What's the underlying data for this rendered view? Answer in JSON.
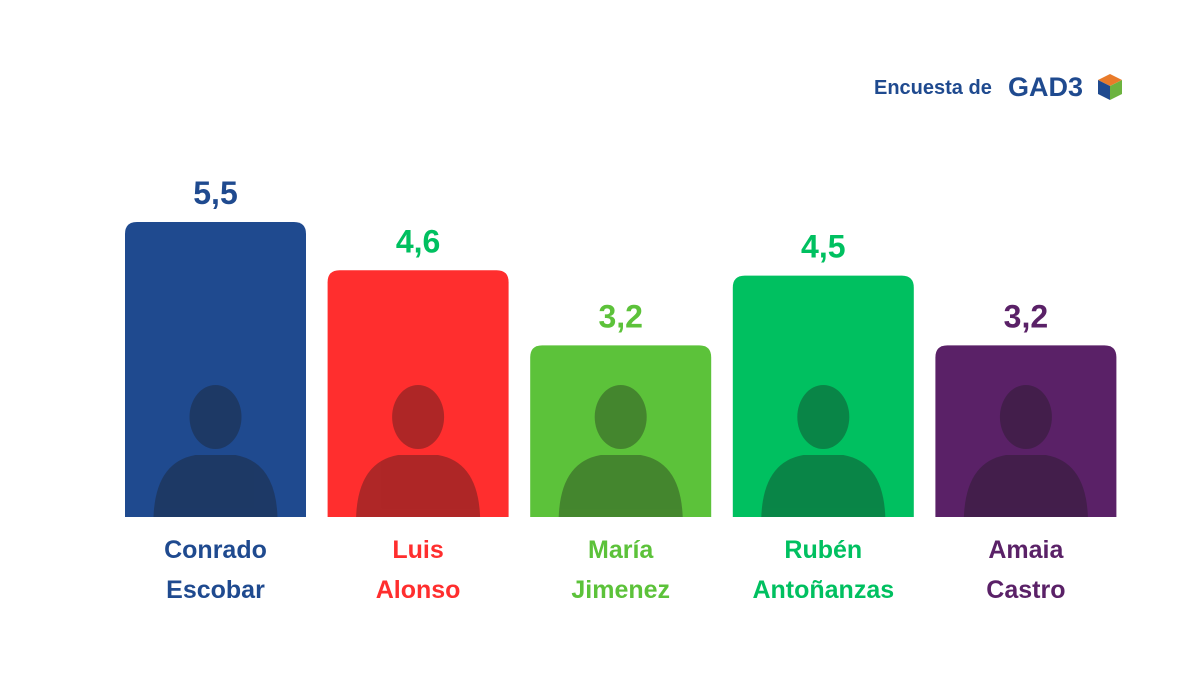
{
  "chart_data": {
    "type": "bar",
    "source": "Encuesta de",
    "source_brand": "GAD3",
    "categories": [
      "Conrado Escobar",
      "Luis Alonso",
      "María Jimenez",
      "Rubén Antoñanzas",
      "Amaia Castro"
    ],
    "values": [
      5.5,
      4.6,
      3.2,
      4.5,
      3.2
    ],
    "value_labels": [
      "5,5",
      "4,6",
      "3,2",
      "4,5",
      "3,2"
    ],
    "colors": [
      "#1f4a8f",
      "#ff2e2e",
      "#5cc23a",
      "#00c060",
      "#5a2167"
    ],
    "value_label_colors": [
      "#1f4a8f",
      "#00c060",
      "#5cc23a",
      "#00c060",
      "#5a2167"
    ],
    "ylim": [
      0,
      5.5
    ]
  }
}
